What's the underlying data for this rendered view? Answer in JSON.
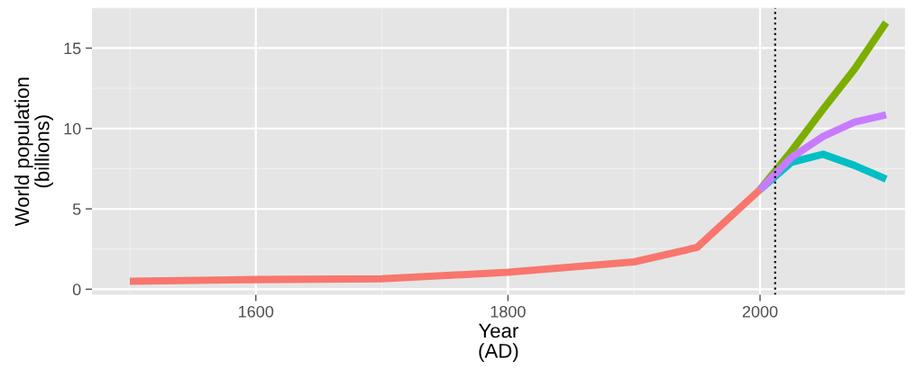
{
  "chart_data": {
    "type": "line",
    "xlabel": "Year\n(AD)",
    "ylabel": "World population\n(billions)",
    "series": [
      {
        "color": "#f8766d",
        "x": [
          1500,
          1600,
          1700,
          1800,
          1900,
          1950,
          2000
        ],
        "values": [
          0.5,
          0.6,
          0.65,
          1.05,
          1.7,
          2.6,
          6.2
        ]
      },
      {
        "color": "#7cae00",
        "x": [
          2000,
          2025,
          2050,
          2075,
          2100
        ],
        "values": [
          6.2,
          8.6,
          11.2,
          13.7,
          16.6
        ]
      },
      {
        "color": "#00bfc4",
        "x": [
          2000,
          2025,
          2050,
          2075,
          2100
        ],
        "values": [
          6.2,
          7.9,
          8.4,
          7.7,
          6.85
        ]
      },
      {
        "color": "#c77cff",
        "x": [
          2000,
          2025,
          2050,
          2075,
          2100
        ],
        "values": [
          6.2,
          8.2,
          9.5,
          10.4,
          10.85
        ]
      }
    ],
    "xlim": [
      1470,
      2115
    ],
    "xticks": [
      1600,
      1800,
      2000
    ],
    "ylim": [
      -0.35,
      17.5
    ],
    "yticks": [
      0,
      5,
      10,
      15
    ],
    "ref_lines": [
      {
        "axis": "x",
        "value": 2012,
        "color": "#000000",
        "line_style": "dotted"
      }
    ],
    "grid": true,
    "legend": false,
    "marker": "none",
    "line_style": "solid"
  }
}
